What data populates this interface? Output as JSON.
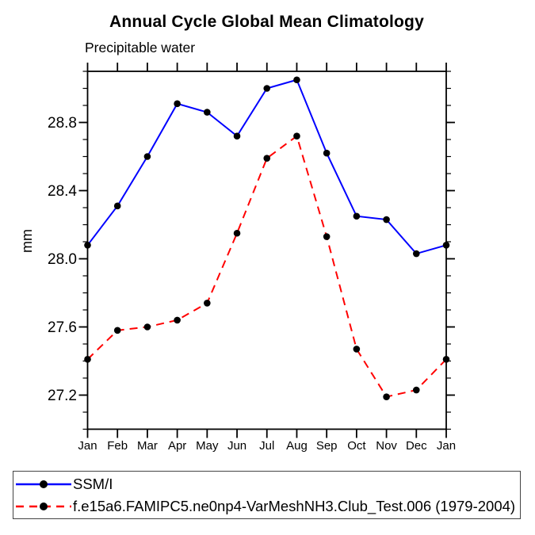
{
  "page_background": "#ffffff",
  "chart_data": {
    "type": "line",
    "title": "Annual Cycle Global Mean Climatology",
    "subtitle": "Precipitable water",
    "xlabel": "",
    "ylabel": "mm",
    "categories": [
      "Jan",
      "Feb",
      "Mar",
      "Apr",
      "May",
      "Jun",
      "Jul",
      "Aug",
      "Sep",
      "Oct",
      "Nov",
      "Dec",
      "Jan"
    ],
    "ylim": [
      27.0,
      29.1
    ],
    "ytick_major": [
      27.2,
      27.6,
      28.0,
      28.4,
      28.8
    ],
    "ytick_minor_step": 0.1,
    "grid": false,
    "legend_position": "bottom-left-box",
    "axis_color": "#000000",
    "marker_shape": "filled-circle",
    "series": [
      {
        "name": "SSM/I",
        "color": "#0000ff",
        "style": "solid",
        "marker_color": "#000000",
        "values": [
          28.08,
          28.31,
          28.6,
          28.91,
          28.86,
          28.72,
          29.0,
          29.05,
          28.62,
          28.25,
          28.23,
          28.03,
          28.08
        ]
      },
      {
        "name": "f.e15a6.FAMIPC5.ne0np4-VarMeshNH3.Club_Test.006 (1979-2004)",
        "color": "#ff0000",
        "style": "dashed",
        "marker_color": "#000000",
        "values": [
          27.41,
          27.58,
          27.6,
          27.64,
          27.74,
          28.15,
          28.59,
          28.72,
          28.13,
          27.47,
          27.19,
          27.23,
          27.41
        ]
      }
    ]
  }
}
